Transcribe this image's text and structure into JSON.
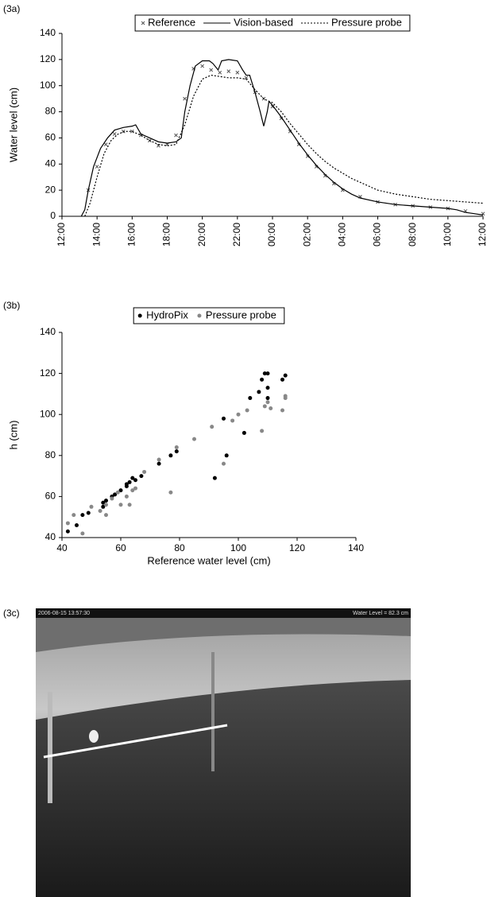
{
  "chart_data": [
    {
      "type": "line",
      "panel_label": "(3a)",
      "y_label": "Water level (cm)",
      "legend": "top-center",
      "xlim": [
        0,
        24
      ],
      "xticks": [
        {
          "value": 0,
          "label": "12:00"
        },
        {
          "value": 2,
          "label": "14:00"
        },
        {
          "value": 4,
          "label": "16:00"
        },
        {
          "value": 6,
          "label": "18:00"
        },
        {
          "value": 8,
          "label": "20:00"
        },
        {
          "value": 10,
          "label": "22:00"
        },
        {
          "value": 12,
          "label": "00:00"
        },
        {
          "value": 14,
          "label": "02:00"
        },
        {
          "value": 16,
          "label": "04:00"
        },
        {
          "value": 18,
          "label": "06:00"
        },
        {
          "value": 20,
          "label": "08:00"
        },
        {
          "value": 22,
          "label": "10:00"
        },
        {
          "value": 24,
          "label": "12:00"
        }
      ],
      "ylim": [
        0,
        140
      ],
      "yticks": [
        0,
        20,
        40,
        60,
        80,
        100,
        120,
        140
      ],
      "series": [
        {
          "name": "Reference",
          "color": "#555555",
          "style": "marker-x",
          "x": [
            1.5,
            2,
            2.5,
            3,
            3.5,
            4,
            4.5,
            5,
            5.5,
            6,
            6.5,
            7,
            7.5,
            8,
            8.5,
            9,
            9.5,
            10,
            10.5,
            11,
            11.5,
            12,
            12.5,
            13,
            13.5,
            14,
            14.5,
            15,
            15.5,
            16,
            17,
            18,
            19,
            20,
            21,
            22,
            23,
            24
          ],
          "values": [
            20,
            38,
            55,
            63,
            65,
            65,
            62,
            58,
            54,
            55,
            62,
            90,
            113,
            115,
            112,
            110,
            111,
            110,
            106,
            95,
            90,
            84,
            75,
            65,
            55,
            46,
            38,
            31,
            25,
            20,
            15,
            11,
            9,
            8,
            7,
            6,
            4,
            2
          ]
        },
        {
          "name": "Vision-based",
          "color": "#000000",
          "style": "solid",
          "x": [
            1.1,
            1.3,
            1.5,
            1.8,
            2.2,
            2.6,
            3,
            3.5,
            4,
            4.2,
            4.5,
            5,
            5.5,
            6,
            6.5,
            6.8,
            7,
            7.3,
            7.6,
            8,
            8.4,
            8.6,
            8.9,
            9.1,
            9.5,
            10,
            10.3,
            10.5,
            10.7,
            11,
            11.3,
            11.5,
            11.7,
            11.8,
            12,
            12.5,
            13,
            13.5,
            14,
            14.5,
            15,
            15.5,
            16,
            16.5,
            17,
            18,
            19,
            20,
            21,
            22,
            22.5,
            23,
            23.5,
            24
          ],
          "values": [
            0,
            5,
            20,
            38,
            52,
            60,
            66,
            68,
            69,
            70,
            63,
            60,
            57,
            56,
            57,
            60,
            80,
            100,
            115,
            119,
            119,
            117,
            112,
            119,
            120,
            119,
            112,
            108,
            108,
            95,
            80,
            69,
            80,
            88,
            85,
            76,
            66,
            56,
            47,
            39,
            32,
            26,
            21,
            17,
            14,
            11,
            9,
            8,
            7,
            6,
            5,
            3,
            2,
            1
          ]
        },
        {
          "name": "Pressure probe",
          "color": "#000000",
          "style": "dashed",
          "x": [
            1.3,
            1.6,
            2,
            2.4,
            2.8,
            3.2,
            3.6,
            4,
            4.5,
            5,
            5.5,
            6,
            6.5,
            7,
            7.5,
            8,
            8.5,
            9,
            9.5,
            10,
            10.5,
            11,
            11.5,
            11.8,
            12,
            12.5,
            13,
            13.5,
            14,
            14.5,
            15,
            15.5,
            16,
            16.5,
            17,
            18,
            19,
            20,
            21,
            22,
            23,
            24
          ],
          "values": [
            0,
            10,
            30,
            48,
            58,
            63,
            65,
            65,
            62,
            58,
            55,
            54,
            55,
            70,
            92,
            105,
            108,
            107,
            106,
            106,
            105,
            97,
            90,
            88,
            87,
            80,
            71,
            63,
            55,
            48,
            42,
            37,
            33,
            29,
            26,
            20,
            17,
            15,
            13,
            12,
            11,
            10
          ]
        }
      ]
    },
    {
      "type": "scatter",
      "panel_label": "(3b)",
      "y_label": "h (cm)",
      "x_label": "Reference water level (cm)",
      "legend": "top-center",
      "xlim": [
        40,
        140
      ],
      "xticks": [
        40,
        60,
        80,
        100,
        120,
        140
      ],
      "ylim": [
        40,
        140
      ],
      "yticks": [
        40,
        60,
        80,
        100,
        120,
        140
      ],
      "series": [
        {
          "name": "HydroPix",
          "color": "#000000",
          "x": [
            42,
            45,
            47,
            49,
            54,
            54,
            55,
            57,
            58,
            60,
            62,
            62,
            63,
            64,
            65,
            67,
            73,
            77,
            79,
            92,
            96,
            95,
            102,
            104,
            107,
            108,
            109,
            110,
            110,
            110,
            115,
            116
          ],
          "values": [
            43,
            46,
            51,
            52,
            55,
            57,
            58,
            60,
            61,
            63,
            65,
            66,
            67,
            69,
            68,
            70,
            76,
            80,
            82,
            69,
            80,
            98,
            91,
            108,
            111,
            117,
            120,
            120,
            113,
            108,
            117,
            119
          ]
        },
        {
          "name": "Pressure probe",
          "color": "#888888",
          "x": [
            42,
            44,
            47,
            50,
            53,
            55,
            55,
            57,
            59,
            60,
            62,
            63,
            64,
            65,
            68,
            73,
            77,
            79,
            85,
            91,
            95,
            98,
            100,
            103,
            108,
            109,
            110,
            111,
            115,
            116,
            116
          ],
          "values": [
            47,
            51,
            42,
            55,
            53,
            51,
            56,
            59,
            62,
            56,
            60,
            56,
            63,
            64,
            72,
            78,
            62,
            84,
            88,
            94,
            76,
            97,
            100,
            102,
            92,
            104,
            106,
            103,
            102,
            109,
            108
          ]
        }
      ]
    }
  ],
  "photo": {
    "label": "(3c)",
    "timestamp": "2006-08-15 13:57:30",
    "overlay": "Water Level = 82.3 cm"
  }
}
